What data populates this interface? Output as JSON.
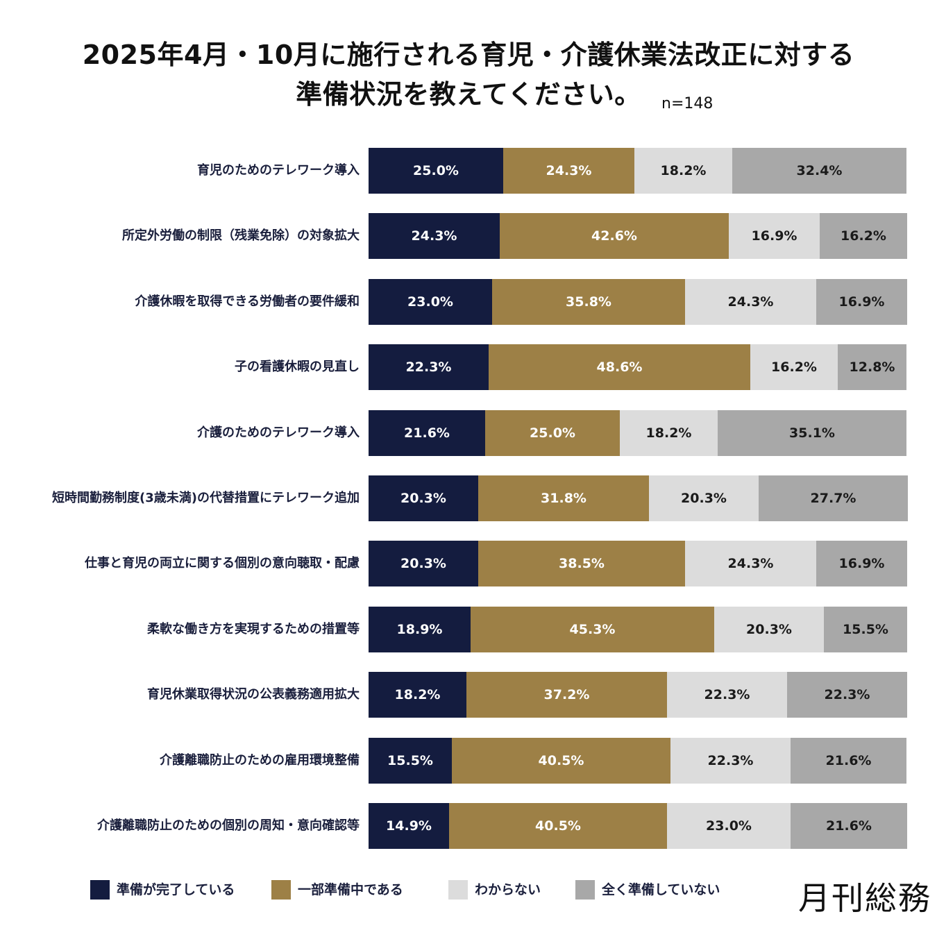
{
  "title_line1": "2025年4月・10月に施行される育児・介護休業法改正に対する",
  "title_line2": "準備状況を教えてください。",
  "sample_size": "n=148",
  "logo_text": "月刊総務",
  "chart_data": {
    "type": "bar",
    "orientation": "horizontal",
    "stacked": true,
    "xlim": [
      0,
      100
    ],
    "categories": [
      "育児のためのテレワーク導入",
      "所定外労働の制限（残業免除）の対象拡大",
      "介護休暇を取得できる労働者の要件緩和",
      "子の看護休暇の見直し",
      "介護のためのテレワーク導入",
      "短時間勤務制度(3歳未満)の代替措置にテレワーク追加",
      "仕事と育児の両立に関する個別の意向聴取・配慮",
      "柔軟な働き方を実現するための措置等",
      "育児休業取得状況の公表義務適用拡大",
      "介護離職防止のための雇用環境整備",
      "介護離職防止のための個別の周知・意向確認等"
    ],
    "series": [
      {
        "name": "準備が完了している",
        "color": "#141c3f",
        "text_color": "#ffffff",
        "values": [
          25.0,
          24.3,
          23.0,
          22.3,
          21.6,
          20.3,
          20.3,
          18.9,
          18.2,
          15.5,
          14.9
        ],
        "labels": [
          "25.0%",
          "24.3%",
          "23.0%",
          "22.3%",
          "21.6%",
          "20.3%",
          "20.3%",
          "18.9%",
          "18.2%",
          "15.5%",
          "14.9%"
        ]
      },
      {
        "name": "一部準備中である",
        "color": "#9d8046",
        "text_color": "#ffffff",
        "values": [
          24.3,
          42.6,
          35.8,
          48.6,
          25.0,
          31.8,
          38.5,
          45.3,
          37.2,
          40.5,
          40.5
        ],
        "labels": [
          "24.3%",
          "42.6%",
          "35.8%",
          "48.6%",
          "25.0%",
          "31.8%",
          "38.5%",
          "45.3%",
          "37.2%",
          "40.5%",
          "40.5%"
        ]
      },
      {
        "name": "わからない",
        "color": "#dcdcdc",
        "text_color": "#1a1a1a",
        "values": [
          18.2,
          16.9,
          24.3,
          16.2,
          18.2,
          20.3,
          24.3,
          20.3,
          22.3,
          22.3,
          23.0
        ],
        "labels": [
          "18.2%",
          "16.9%",
          "24.3%",
          "16.2%",
          "18.2%",
          "20.3%",
          "24.3%",
          "20.3%",
          "22.3%",
          "22.3%",
          "23.0%"
        ]
      },
      {
        "name": "全く準備していない",
        "color": "#a8a8a8",
        "text_color": "#1a1a1a",
        "values": [
          32.4,
          16.2,
          16.9,
          12.8,
          35.1,
          27.7,
          16.9,
          15.5,
          22.3,
          21.6,
          21.6
        ],
        "labels": [
          "32.4%",
          "16.2%",
          "16.9%",
          "12.8%",
          "35.1%",
          "27.7%",
          "16.9%",
          "15.5%",
          "22.3%",
          "21.6%",
          "21.6%"
        ]
      }
    ],
    "legend_position": "bottom"
  }
}
